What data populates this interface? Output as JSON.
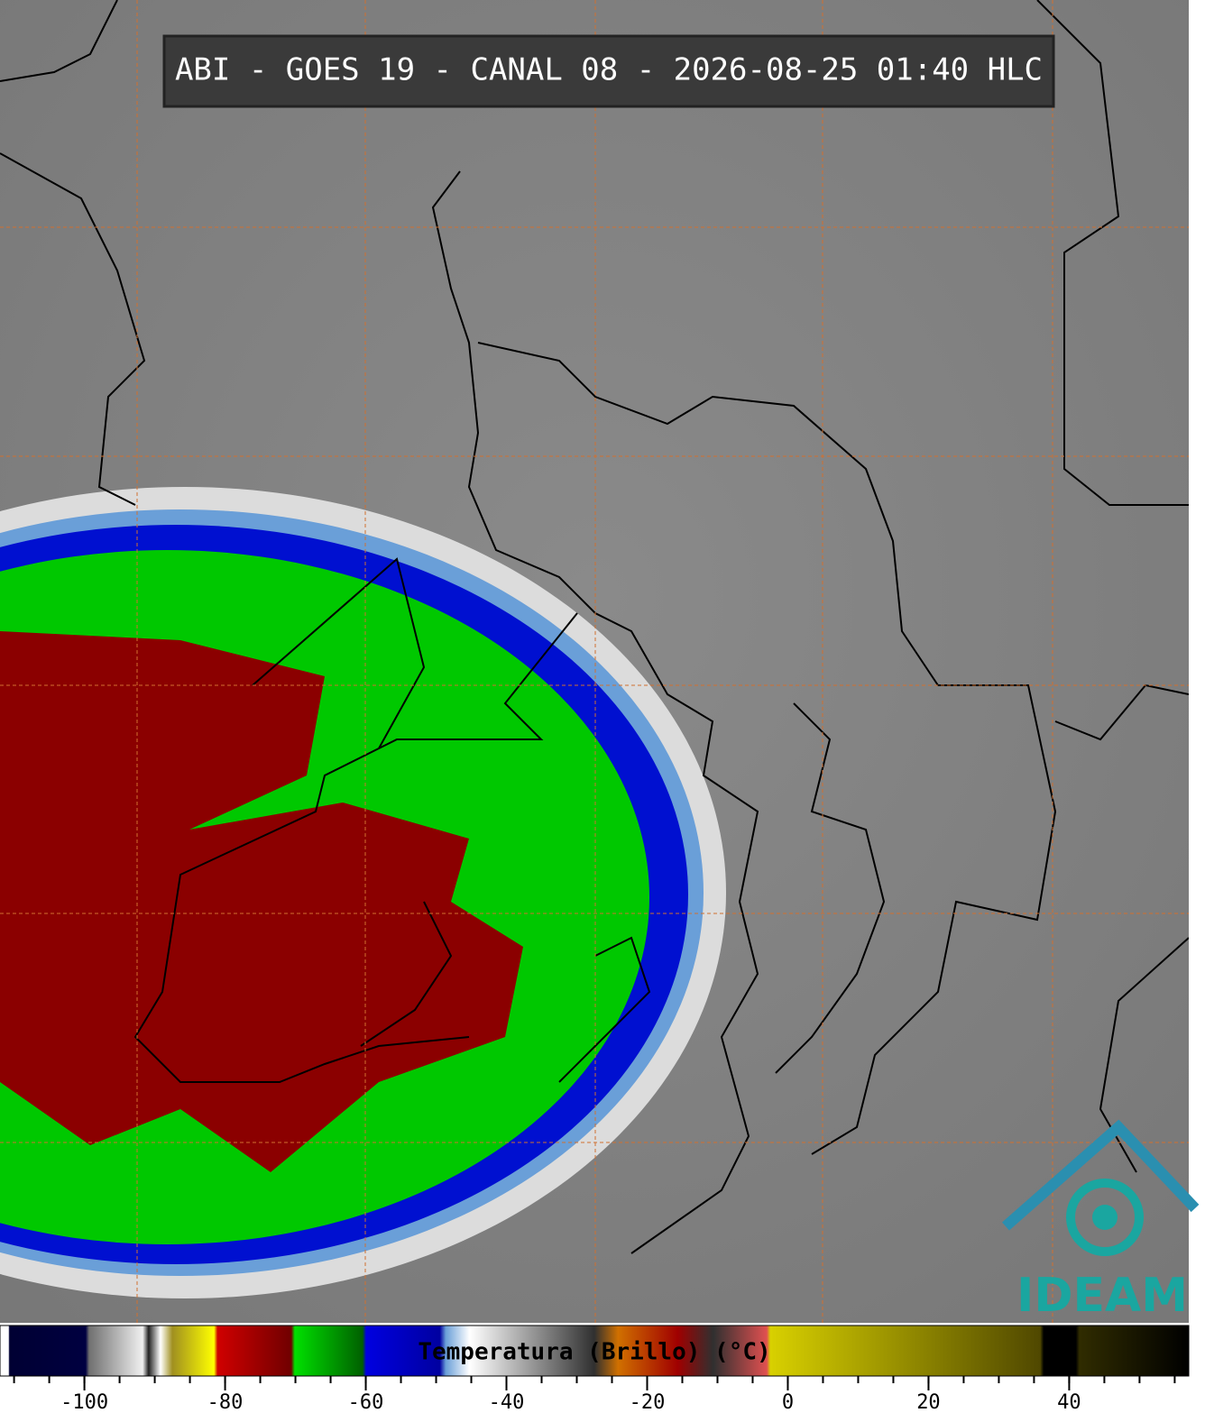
{
  "title": "ABI - GOES 19 - CANAL 08 - 2026-08-25 01:40 HLC",
  "logo": "IDEAM",
  "colorbar": {
    "label": "Temperatura (Brillo) (°C)",
    "xlim": [
      -112,
      57
    ],
    "xticks": [
      -100,
      -80,
      -60,
      -40,
      -20,
      0,
      20,
      40
    ],
    "minor_ticks": [
      -110,
      -105,
      -100,
      -95,
      -90,
      -85,
      -80,
      -75,
      -70,
      -65,
      -60,
      -55,
      -50,
      -45,
      -40,
      -35,
      -30,
      -25,
      -20,
      -15,
      -10,
      -5,
      0,
      5,
      10,
      15,
      20,
      25,
      30,
      35,
      40,
      45,
      50,
      55
    ]
  }
}
